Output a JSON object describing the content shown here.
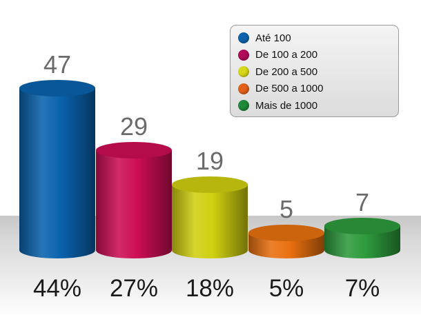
{
  "chart_data": {
    "type": "bar",
    "categories": [
      "Até 100",
      "De 100 a 200",
      "De 200 a 500",
      "De 500 a 1000",
      "Mais de 1000"
    ],
    "values": [
      47,
      29,
      19,
      5,
      7
    ],
    "percent_labels": [
      "44%",
      "27%",
      "18%",
      "5%",
      "7%"
    ],
    "colors": [
      "#0a62ad",
      "#cc0e55",
      "#cfcf10",
      "#e8700f",
      "#2e9a3c"
    ],
    "legend_position": "top-right",
    "grid": false,
    "ylim": [
      0,
      50
    ]
  },
  "legend": {
    "items": [
      {
        "label": "Até 100",
        "color": "#0a62ad"
      },
      {
        "label": "De 100 a 200",
        "color": "#b0085a"
      },
      {
        "label": "De 200 a 500",
        "color": "#d8d81a"
      },
      {
        "label": "De 500 a 1000",
        "color": "#e2601a"
      },
      {
        "label": "Mais de 1000",
        "color": "#1f8a3a"
      }
    ]
  }
}
